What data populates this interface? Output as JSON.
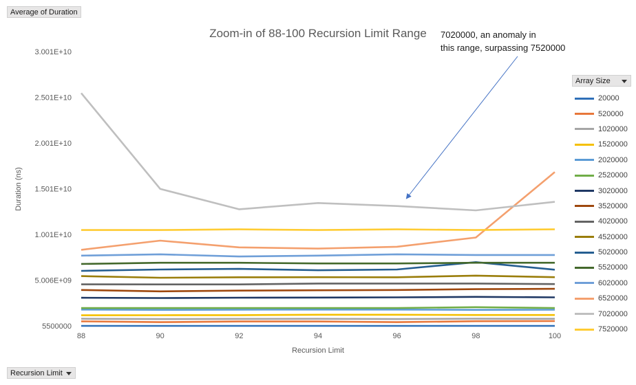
{
  "pivot": {
    "value_field_label": "Average of Duration",
    "axis_field_label": "Recursion Limit",
    "legend_field_label": "Array Size"
  },
  "chart_data": {
    "type": "line",
    "title": "Zoom-in of 88-100 Recursion Limit Range",
    "xlabel": "Recursion Limit",
    "ylabel": "Duration (ns)",
    "x": [
      88,
      90,
      92,
      94,
      96,
      98,
      100
    ],
    "x_tick_labels": [
      "88",
      "90",
      "92",
      "94",
      "96",
      "98",
      "100"
    ],
    "ylim": [
      5500000,
      30010000000
    ],
    "y_tick_values": [
      5500000,
      5006000000,
      10010000000,
      15010000000,
      20010000000,
      25010000000,
      30010000000
    ],
    "y_tick_labels": [
      "5500000",
      "5.006E+09",
      "1.001E+10",
      "1.501E+10",
      "2.001E+10",
      "2.501E+10",
      "3.001E+10"
    ],
    "grid": "none",
    "legend_position": "right",
    "annotation": {
      "lines": [
        "7020000,  an anomaly in",
        "this range, surpassing 7520000"
      ],
      "points_to": {
        "x": 96,
        "y": 13000000000
      }
    },
    "series": [
      {
        "name": "20000",
        "color": "#2f70b8",
        "values": [
          6000000,
          6000000,
          6000000,
          6000000,
          6000000,
          6000000,
          6000000
        ]
      },
      {
        "name": "520000",
        "color": "#e8773a",
        "values": [
          500000000,
          410000000,
          490000000,
          490000000,
          410000000,
          520000000,
          530000000
        ]
      },
      {
        "name": "1020000",
        "color": "#a5a5a5",
        "values": [
          790000000,
          750000000,
          770000000,
          780000000,
          750000000,
          790000000,
          780000000
        ]
      },
      {
        "name": "1520000",
        "color": "#f5c000",
        "values": [
          1160000000,
          1170000000,
          1180000000,
          1220000000,
          1220000000,
          1190000000,
          1190000000
        ]
      },
      {
        "name": "2020000",
        "color": "#5b9bd5",
        "values": [
          1790000000,
          1760000000,
          1780000000,
          1790000000,
          1790000000,
          1760000000,
          1770000000
        ]
      },
      {
        "name": "2520000",
        "color": "#70ad47",
        "values": [
          1950000000,
          1950000000,
          1960000000,
          1960000000,
          1960000000,
          2050000000,
          1960000000
        ]
      },
      {
        "name": "3020000",
        "color": "#1f3864",
        "values": [
          3080000000,
          3050000000,
          3090000000,
          3100000000,
          3130000000,
          3180000000,
          3130000000
        ]
      },
      {
        "name": "3520000",
        "color": "#9e480e",
        "values": [
          3930000000,
          3780000000,
          3860000000,
          3900000000,
          3930000000,
          4020000000,
          4060000000
        ]
      },
      {
        "name": "4020000",
        "color": "#636363",
        "values": [
          4550000000,
          4540000000,
          4540000000,
          4640000000,
          4640000000,
          4640000000,
          4580000000
        ]
      },
      {
        "name": "4520000",
        "color": "#9a7d0a",
        "values": [
          5450000000,
          5270000000,
          5320000000,
          5330000000,
          5320000000,
          5500000000,
          5330000000
        ]
      },
      {
        "name": "5020000",
        "color": "#255e91",
        "values": [
          6020000000,
          6170000000,
          6240000000,
          6090000000,
          6170000000,
          6980000000,
          6150000000
        ]
      },
      {
        "name": "5520000",
        "color": "#43682b",
        "values": [
          6780000000,
          6910000000,
          6910000000,
          6830000000,
          6830000000,
          6910000000,
          6910000000
        ]
      },
      {
        "name": "6020000",
        "color": "#6f9fd8",
        "values": [
          7690000000,
          7830000000,
          7590000000,
          7690000000,
          7830000000,
          7760000000,
          7760000000
        ]
      },
      {
        "name": "6520000",
        "color": "#f4a06e",
        "values": [
          8320000000,
          9330000000,
          8590000000,
          8460000000,
          8660000000,
          9670000000,
          16830000000
        ]
      },
      {
        "name": "7020000",
        "color": "#bfbfbf",
        "values": [
          25470000000,
          14990000000,
          12760000000,
          13440000000,
          13110000000,
          12640000000,
          13570000000
        ]
      },
      {
        "name": "7520000",
        "color": "#ffcc33",
        "values": [
          10490000000,
          10490000000,
          10560000000,
          10490000000,
          10560000000,
          10490000000,
          10560000000
        ]
      }
    ]
  }
}
